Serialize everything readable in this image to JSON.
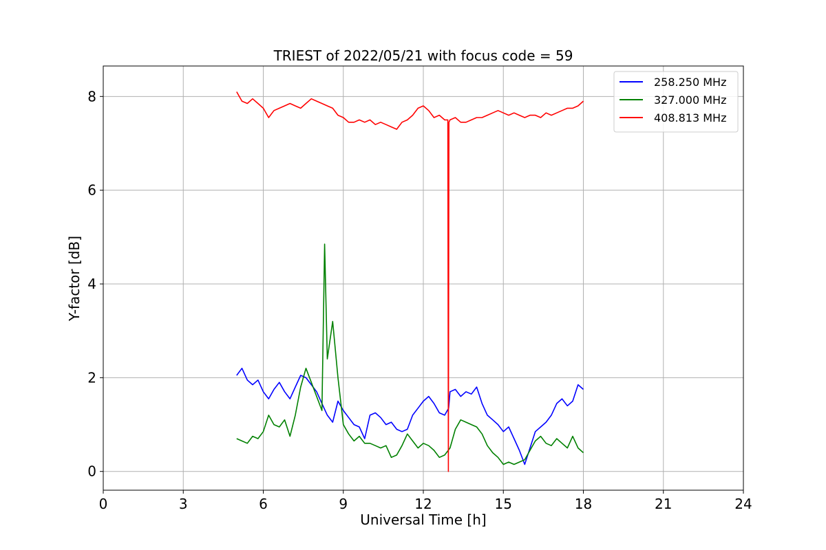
{
  "chart_data": {
    "type": "line",
    "title": "TRIEST of 2022/05/21 with focus code = 59",
    "xlabel": "Universal Time [h]",
    "ylabel": "Y-factor [dB]",
    "xlim": [
      0,
      24
    ],
    "ylim": [
      -0.4,
      8.65
    ],
    "xticks": [
      0,
      3,
      6,
      9,
      12,
      15,
      18,
      21,
      24
    ],
    "yticks": [
      0,
      2,
      4,
      6,
      8
    ],
    "grid": true,
    "legend_position": "top-right",
    "series": [
      {
        "name": "258.250 MHz",
        "color": "#0000ff",
        "x": [
          5.0,
          5.2,
          5.4,
          5.6,
          5.8,
          6.0,
          6.2,
          6.4,
          6.6,
          6.8,
          7.0,
          7.2,
          7.4,
          7.6,
          7.8,
          8.0,
          8.2,
          8.4,
          8.6,
          8.8,
          9.0,
          9.2,
          9.4,
          9.6,
          9.8,
          10.0,
          10.2,
          10.4,
          10.6,
          10.8,
          11.0,
          11.2,
          11.4,
          11.6,
          11.8,
          12.0,
          12.2,
          12.4,
          12.6,
          12.8,
          12.95,
          13.0,
          13.2,
          13.4,
          13.6,
          13.8,
          14.0,
          14.2,
          14.4,
          14.6,
          14.8,
          15.0,
          15.2,
          15.4,
          15.6,
          15.8,
          16.0,
          16.2,
          16.4,
          16.6,
          16.8,
          17.0,
          17.2,
          17.4,
          17.6,
          17.8,
          18.0
        ],
        "y": [
          2.05,
          2.2,
          1.95,
          1.85,
          1.95,
          1.7,
          1.55,
          1.75,
          1.9,
          1.7,
          1.55,
          1.8,
          2.05,
          2.0,
          1.85,
          1.7,
          1.45,
          1.2,
          1.05,
          1.5,
          1.3,
          1.15,
          1.0,
          0.95,
          0.7,
          1.2,
          1.25,
          1.15,
          1.0,
          1.05,
          0.9,
          0.85,
          0.9,
          1.2,
          1.35,
          1.5,
          1.6,
          1.45,
          1.25,
          1.2,
          1.35,
          1.7,
          1.75,
          1.6,
          1.7,
          1.65,
          1.8,
          1.45,
          1.2,
          1.1,
          1.0,
          0.85,
          0.95,
          0.7,
          0.45,
          0.15,
          0.5,
          0.85,
          0.95,
          1.05,
          1.2,
          1.45,
          1.55,
          1.4,
          1.5,
          1.85,
          1.75
        ]
      },
      {
        "name": "327.000 MHz",
        "color": "#008000",
        "x": [
          5.0,
          5.2,
          5.4,
          5.6,
          5.8,
          6.0,
          6.2,
          6.4,
          6.6,
          6.8,
          7.0,
          7.2,
          7.4,
          7.6,
          7.8,
          8.0,
          8.2,
          8.3,
          8.4,
          8.6,
          8.8,
          9.0,
          9.2,
          9.4,
          9.6,
          9.8,
          10.0,
          10.2,
          10.4,
          10.6,
          10.8,
          11.0,
          11.2,
          11.4,
          11.6,
          11.8,
          12.0,
          12.2,
          12.4,
          12.6,
          12.8,
          13.0,
          13.2,
          13.4,
          13.6,
          13.8,
          14.0,
          14.2,
          14.4,
          14.6,
          14.8,
          15.0,
          15.2,
          15.4,
          15.6,
          15.8,
          16.0,
          16.2,
          16.4,
          16.6,
          16.8,
          17.0,
          17.2,
          17.4,
          17.6,
          17.8,
          18.0
        ],
        "y": [
          0.7,
          0.65,
          0.6,
          0.75,
          0.7,
          0.85,
          1.2,
          1.0,
          0.95,
          1.1,
          0.75,
          1.2,
          1.8,
          2.2,
          1.9,
          1.6,
          1.3,
          4.85,
          2.4,
          3.2,
          2.0,
          1.0,
          0.8,
          0.65,
          0.75,
          0.6,
          0.6,
          0.55,
          0.5,
          0.55,
          0.3,
          0.35,
          0.55,
          0.8,
          0.65,
          0.5,
          0.6,
          0.55,
          0.45,
          0.3,
          0.35,
          0.5,
          0.9,
          1.1,
          1.05,
          1.0,
          0.95,
          0.8,
          0.55,
          0.4,
          0.3,
          0.15,
          0.2,
          0.15,
          0.2,
          0.25,
          0.45,
          0.65,
          0.75,
          0.6,
          0.55,
          0.7,
          0.6,
          0.5,
          0.75,
          0.5,
          0.4
        ]
      },
      {
        "name": "408.813 MHz",
        "color": "#ff0000",
        "x": [
          5.0,
          5.2,
          5.4,
          5.6,
          5.8,
          6.0,
          6.2,
          6.4,
          6.6,
          6.8,
          7.0,
          7.2,
          7.4,
          7.6,
          7.8,
          8.0,
          8.2,
          8.4,
          8.6,
          8.8,
          9.0,
          9.2,
          9.4,
          9.6,
          9.8,
          10.0,
          10.2,
          10.4,
          10.6,
          10.8,
          11.0,
          11.2,
          11.4,
          11.6,
          11.8,
          12.0,
          12.2,
          12.4,
          12.6,
          12.8,
          12.92,
          12.94,
          12.96,
          13.0,
          13.2,
          13.4,
          13.6,
          13.8,
          14.0,
          14.2,
          14.4,
          14.6,
          14.8,
          15.0,
          15.2,
          15.4,
          15.6,
          15.8,
          16.0,
          16.2,
          16.4,
          16.6,
          16.8,
          17.0,
          17.2,
          17.4,
          17.6,
          17.8,
          18.0
        ],
        "y": [
          8.1,
          7.9,
          7.85,
          7.95,
          7.85,
          7.75,
          7.55,
          7.7,
          7.75,
          7.8,
          7.85,
          7.8,
          7.75,
          7.85,
          7.95,
          7.9,
          7.85,
          7.8,
          7.75,
          7.6,
          7.55,
          7.45,
          7.45,
          7.5,
          7.45,
          7.5,
          7.4,
          7.45,
          7.4,
          7.35,
          7.3,
          7.45,
          7.5,
          7.6,
          7.75,
          7.8,
          7.7,
          7.55,
          7.6,
          7.5,
          7.5,
          0.0,
          7.45,
          7.5,
          7.55,
          7.45,
          7.45,
          7.5,
          7.55,
          7.55,
          7.6,
          7.65,
          7.7,
          7.65,
          7.6,
          7.65,
          7.6,
          7.55,
          7.6,
          7.6,
          7.55,
          7.65,
          7.6,
          7.65,
          7.7,
          7.75,
          7.75,
          7.8,
          7.9
        ]
      }
    ]
  }
}
